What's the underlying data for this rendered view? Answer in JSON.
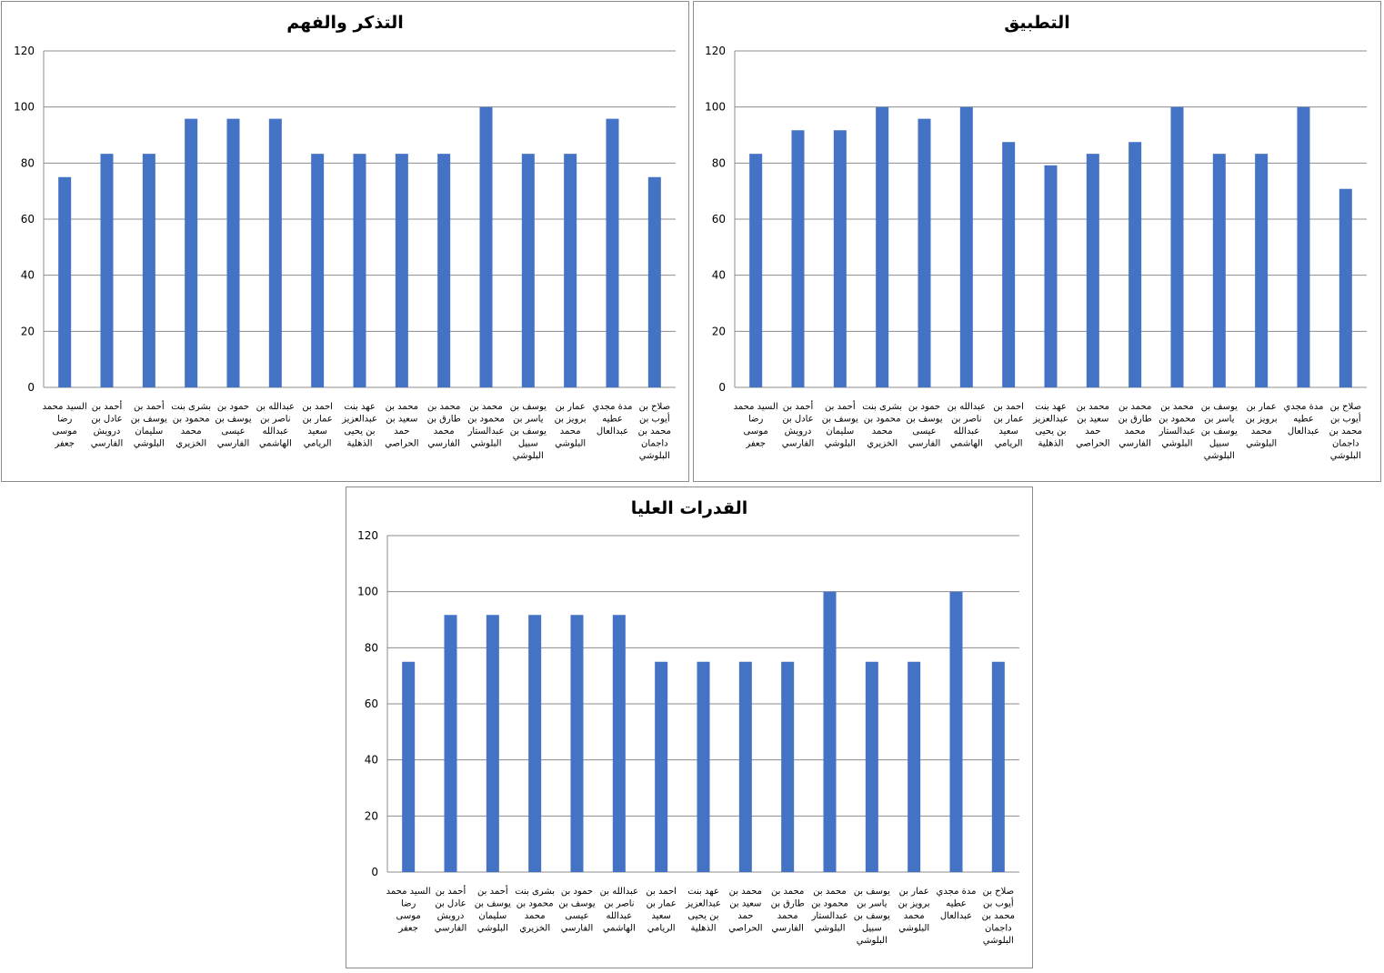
{
  "chart_data": [
    {
      "type": "bar",
      "title": "التذكر والفهم",
      "categories": [
        [
          "السيد محمد",
          "رضا",
          "موسى",
          "جعفر"
        ],
        [
          "أحمد بن",
          "عادل بن",
          "درويش",
          "الفارسي"
        ],
        [
          "أحمد بن",
          "يوسف بن",
          "سليمان",
          "البلوشي"
        ],
        [
          "بشرى بنت",
          "محمود بن",
          "محمد",
          "الخزيري"
        ],
        [
          "حمود بن",
          "يوسف بن",
          "عيسى",
          "الفارسي"
        ],
        [
          "عبدالله بن",
          "ناصر بن",
          "عبدالله",
          "الهاشمي"
        ],
        [
          "احمد بن",
          "عمار بن",
          "سعيد",
          "الريامي"
        ],
        [
          "عهد بنت",
          "عبدالعزيز",
          "بن يحيى",
          "الذهلية"
        ],
        [
          "محمد بن",
          "سعيد بن",
          "حمد",
          "الحراصي"
        ],
        [
          "محمد بن",
          "طارق بن",
          "محمد",
          "الفارسي"
        ],
        [
          "محمد بن",
          "محمود بن",
          "عبدالستار",
          "البلوشي"
        ],
        [
          "يوسف بن",
          "ياسر بن",
          "يوسف بن",
          "سبيل",
          "البلوشي"
        ],
        [
          "عمار بن",
          "برويز بن",
          "محمد",
          "البلوشي"
        ],
        [
          "مدة مجدي",
          "عطيه",
          "عبدالعال"
        ],
        [
          "صلاح بن",
          "أيوب بن",
          "محمد بن",
          "داجمان",
          "البلوشي"
        ]
      ],
      "values": [
        75,
        83.3,
        83.3,
        95.8,
        95.8,
        95.8,
        83.3,
        83.3,
        83.3,
        83.3,
        100,
        83.3,
        83.3,
        95.8,
        75
      ],
      "ylim": [
        0,
        120
      ],
      "yticks": [
        "0",
        "20",
        "40",
        "60",
        "80",
        "100",
        "120"
      ],
      "grid": true,
      "legend": "none",
      "bar_color": "#4472C4"
    },
    {
      "type": "bar",
      "title": "التطبيق",
      "categories": [
        [
          "السيد محمد",
          "رضا",
          "موسى",
          "جعفر"
        ],
        [
          "أحمد بن",
          "عادل بن",
          "درويش",
          "الفارسي"
        ],
        [
          "أحمد بن",
          "يوسف بن",
          "سليمان",
          "البلوشي"
        ],
        [
          "بشرى بنت",
          "محمود بن",
          "محمد",
          "الخزيري"
        ],
        [
          "حمود بن",
          "يوسف بن",
          "عيسى",
          "الفارسي"
        ],
        [
          "عبدالله بن",
          "ناصر بن",
          "عبدالله",
          "الهاشمي"
        ],
        [
          "احمد بن",
          "عمار بن",
          "سعيد",
          "الريامي"
        ],
        [
          "عهد بنت",
          "عبدالعزيز",
          "بن يحيى",
          "الذهلية"
        ],
        [
          "محمد بن",
          "سعيد بن",
          "حمد",
          "الحراصي"
        ],
        [
          "محمد بن",
          "طارق بن",
          "محمد",
          "الفارسي"
        ],
        [
          "محمد بن",
          "محمود بن",
          "عبدالستار",
          "البلوشي"
        ],
        [
          "يوسف بن",
          "ياسر بن",
          "يوسف بن",
          "سبيل",
          "البلوشي"
        ],
        [
          "عمار بن",
          "برويز بن",
          "محمد",
          "البلوشي"
        ],
        [
          "مدة مجدي",
          "عطيه",
          "عبدالعال"
        ],
        [
          "صلاح بن",
          "أيوب بن",
          "محمد بن",
          "داجمان",
          "البلوشي"
        ]
      ],
      "values": [
        83.3,
        91.7,
        91.7,
        100,
        95.8,
        100,
        87.5,
        79.2,
        83.3,
        87.5,
        100,
        83.3,
        83.3,
        100,
        70.8
      ],
      "ylim": [
        0,
        120
      ],
      "yticks": [
        "0",
        "20",
        "40",
        "60",
        "80",
        "100",
        "120"
      ],
      "grid": true,
      "legend": "none",
      "bar_color": "#4472C4"
    },
    {
      "type": "bar",
      "title": "القدرات العليا",
      "categories": [
        [
          "السيد محمد",
          "رضا",
          "موسى",
          "جعفر"
        ],
        [
          "أحمد بن",
          "عادل بن",
          "درويش",
          "الفارسي"
        ],
        [
          "أحمد بن",
          "يوسف بن",
          "سليمان",
          "البلوشي"
        ],
        [
          "بشرى بنت",
          "محمود بن",
          "محمد",
          "الخزيري"
        ],
        [
          "حمود بن",
          "يوسف بن",
          "عيسى",
          "الفارسي"
        ],
        [
          "عبدالله بن",
          "ناصر بن",
          "عبدالله",
          "الهاشمي"
        ],
        [
          "احمد بن",
          "عمار بن",
          "سعيد",
          "الريامي"
        ],
        [
          "عهد بنت",
          "عبدالعزيز",
          "بن يحيى",
          "الذهلية"
        ],
        [
          "محمد بن",
          "سعيد بن",
          "حمد",
          "الحراصي"
        ],
        [
          "محمد بن",
          "طارق بن",
          "محمد",
          "الفارسي"
        ],
        [
          "محمد بن",
          "محمود بن",
          "عبدالستار",
          "البلوشي"
        ],
        [
          "يوسف بن",
          "ياسر بن",
          "يوسف بن",
          "سبيل",
          "البلوشي"
        ],
        [
          "عمار بن",
          "برويز بن",
          "محمد",
          "البلوشي"
        ],
        [
          "مدة مجدي",
          "عطيه",
          "عبدالعال"
        ],
        [
          "صلاح بن",
          "أيوب بن",
          "محمد بن",
          "داجمان",
          "البلوشي"
        ]
      ],
      "values": [
        75,
        91.7,
        91.7,
        91.7,
        91.7,
        91.7,
        75,
        75,
        75,
        75,
        100,
        75,
        75,
        100,
        75
      ],
      "ylim": [
        0,
        120
      ],
      "yticks": [
        "0",
        "20",
        "40",
        "60",
        "80",
        "100",
        "120"
      ],
      "grid": true,
      "legend": "none",
      "bar_color": "#4472C4"
    }
  ]
}
